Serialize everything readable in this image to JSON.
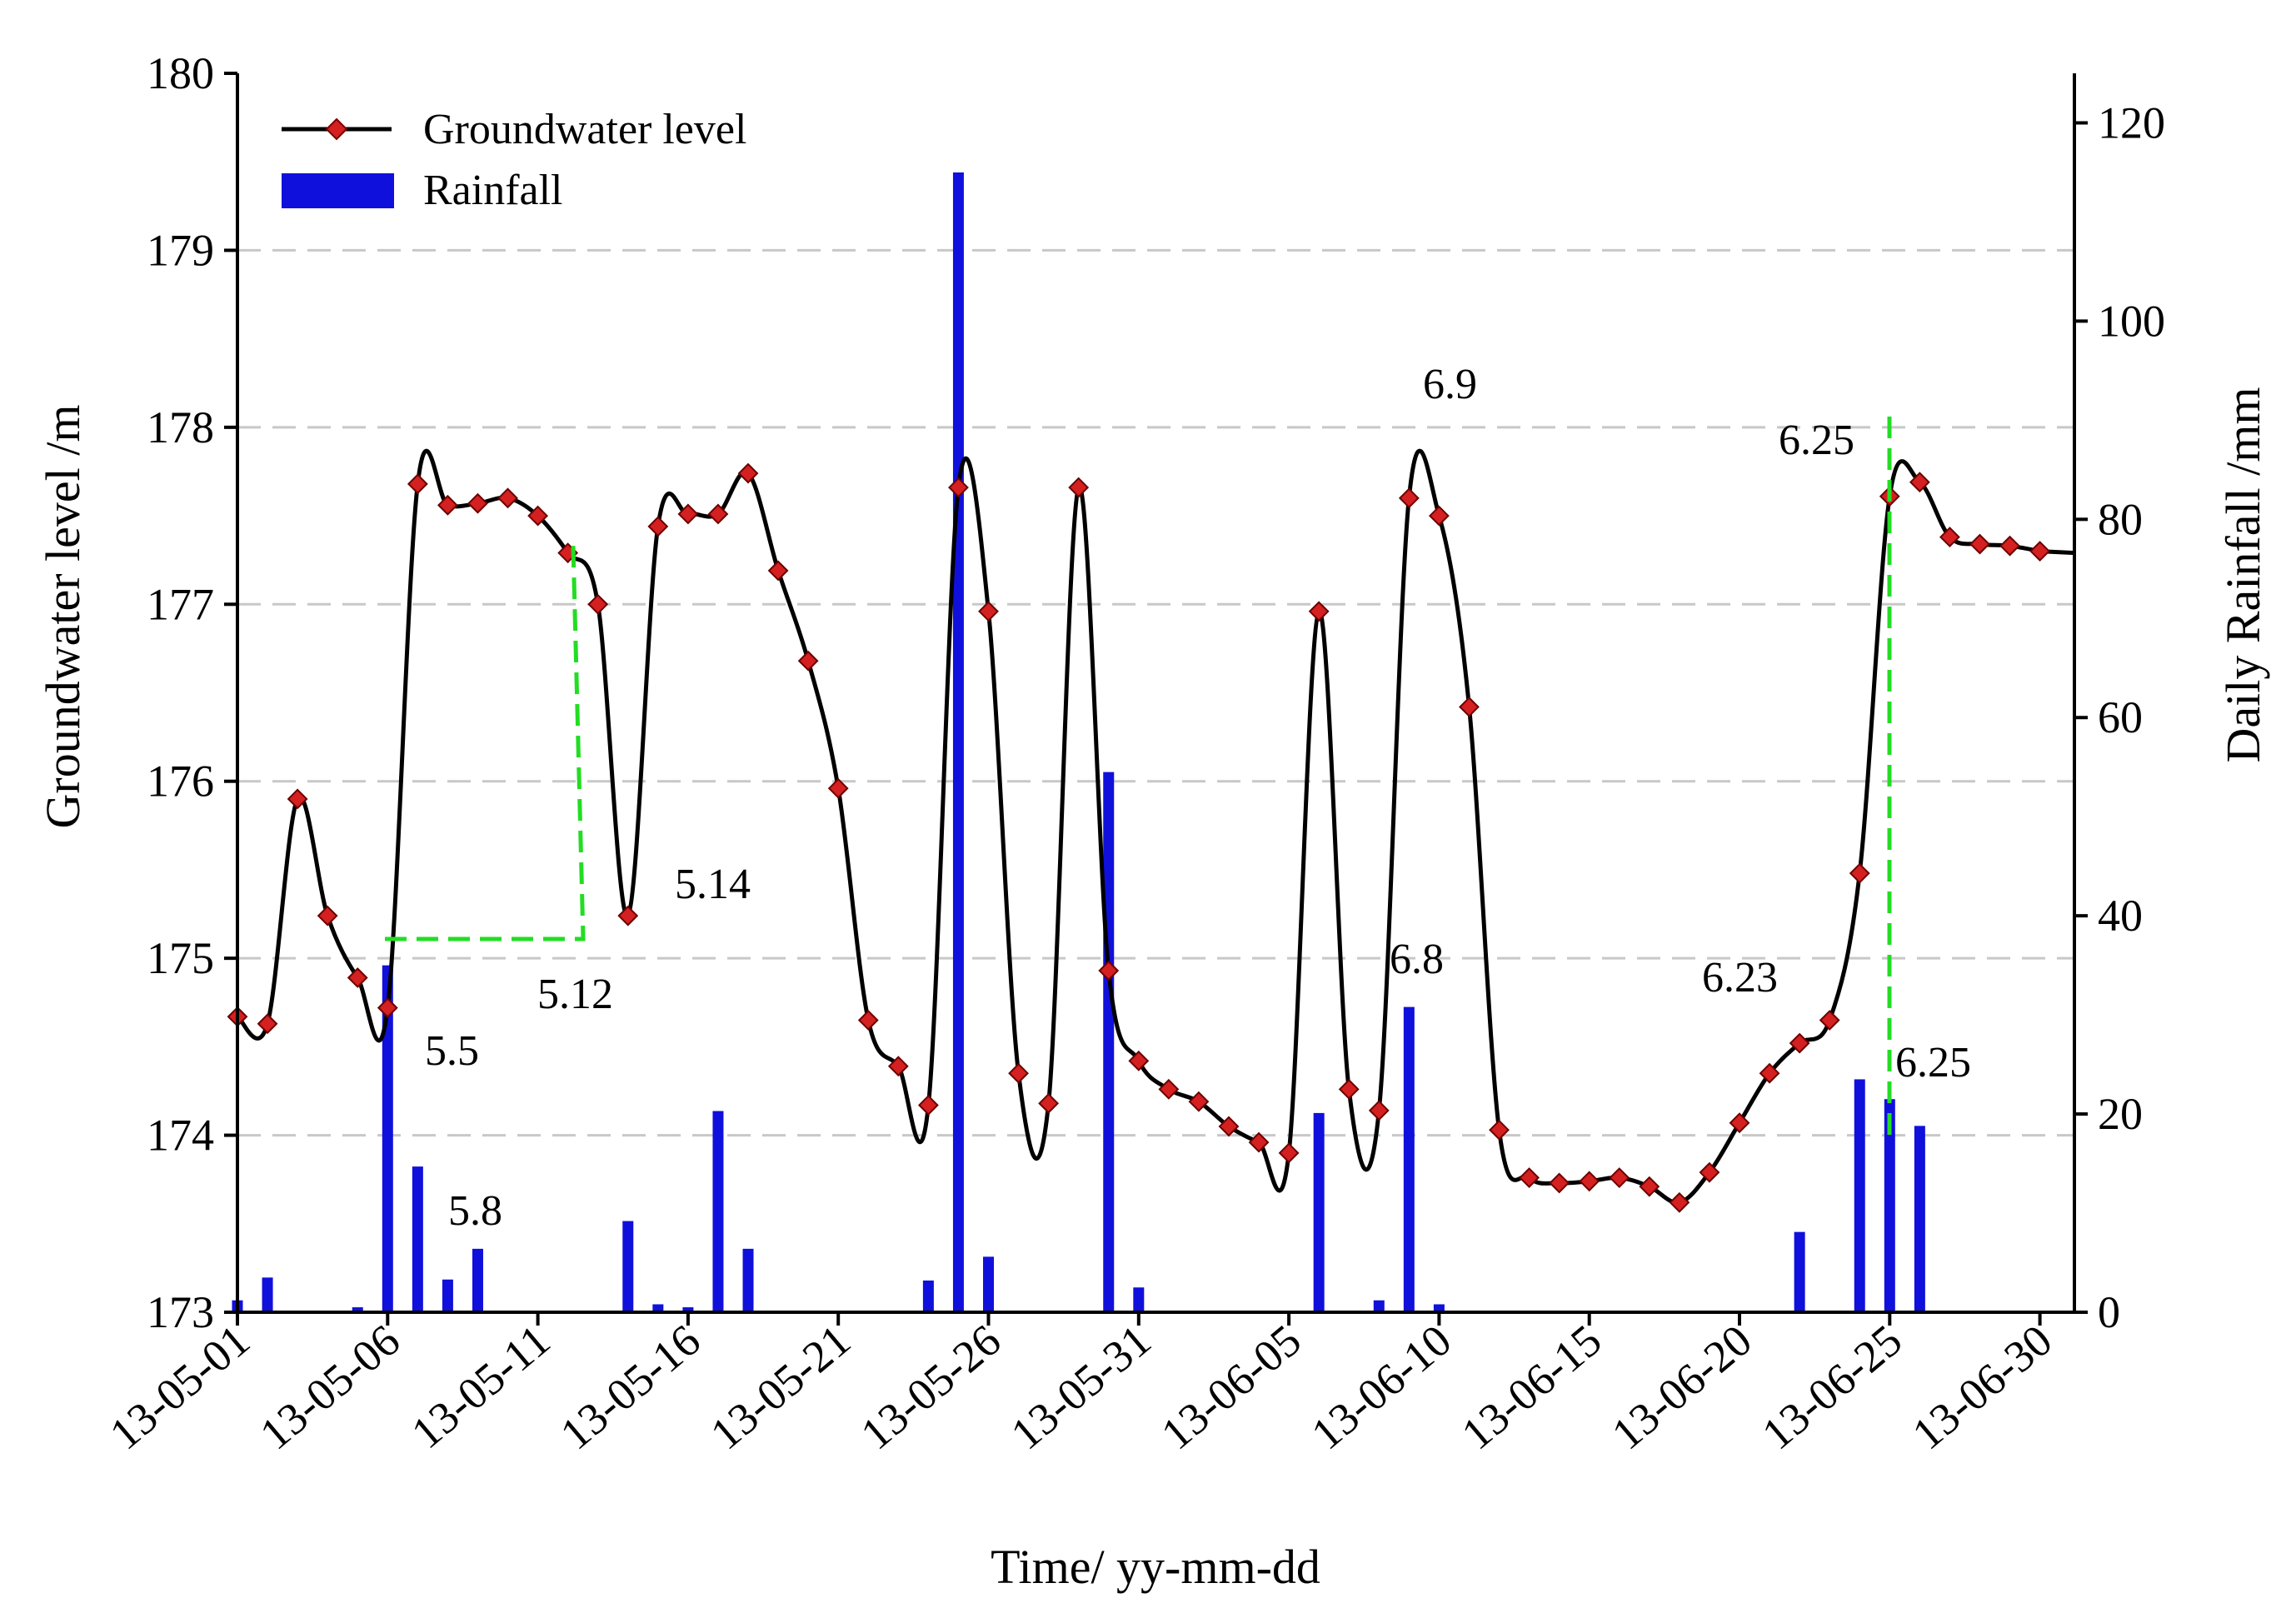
{
  "chart_data": {
    "type": "line+bar",
    "title": "",
    "xlabel": "Time/ yy-mm-dd",
    "ylabel_left": "Groundwater level /m",
    "ylabel_right": "Daily Rainfall /mm",
    "x_range_days": [
      0,
      60.5
    ],
    "ylim_left": [
      173,
      180
    ],
    "ylim_right": [
      0,
      125
    ],
    "yticks_left": [
      "173",
      "174",
      "175",
      "176",
      "177",
      "178",
      "179",
      "180"
    ],
    "yticks_right": [
      "0",
      "20",
      "40",
      "60",
      "80",
      "100",
      "120"
    ],
    "xtick_days": [
      0,
      5,
      10,
      15,
      20,
      25,
      30,
      35,
      40,
      45,
      50,
      55,
      60
    ],
    "xtick_labels": [
      "13-05-01",
      "13-05-06",
      "13-05-11",
      "13-05-16",
      "13-05-21",
      "13-05-26",
      "13-05-31",
      "13-06-05",
      "13-06-10",
      "13-06-15",
      "13-06-20",
      "13-06-25",
      "13-06-30"
    ],
    "grid": true,
    "legend_position": "top-left",
    "legend": [
      {
        "label": "Groundwater level",
        "kind": "line-marker"
      },
      {
        "label": "Rainfall",
        "kind": "bar"
      }
    ],
    "colors": {
      "line": "#000000",
      "marker": "#d42020",
      "bar": "#1010dc",
      "annot_line": "#22dd22"
    },
    "series_groundwater": {
      "name": "Groundwater level",
      "day": [
        0,
        1,
        2,
        3,
        4,
        5,
        6,
        7,
        8,
        9,
        10,
        11,
        12,
        13,
        14,
        15,
        16,
        17,
        18,
        19,
        20,
        21,
        22,
        23,
        24,
        25,
        26,
        27,
        28,
        29,
        30,
        31,
        32,
        33,
        34,
        35,
        36,
        37,
        38,
        39,
        40,
        41,
        42,
        43,
        44,
        45,
        46,
        47,
        48,
        49,
        50,
        51,
        52,
        53,
        54,
        55,
        56,
        57,
        58,
        59,
        60
      ],
      "level": [
        174.67,
        174.63,
        175.9,
        175.24,
        174.89,
        174.72,
        177.68,
        177.56,
        177.57,
        177.6,
        177.5,
        177.29,
        177.0,
        175.24,
        177.44,
        177.51,
        177.51,
        177.74,
        177.19,
        176.68,
        175.96,
        174.65,
        174.39,
        174.17,
        177.66,
        176.96,
        174.35,
        174.18,
        177.66,
        174.93,
        174.42,
        174.26,
        174.19,
        174.05,
        173.96,
        173.9,
        176.96,
        174.26,
        174.14,
        177.6,
        177.5,
        176.42,
        174.03,
        173.76,
        173.73,
        173.74,
        173.76,
        173.71,
        173.62,
        173.79,
        174.07,
        174.35,
        174.52,
        174.65,
        175.48,
        177.61,
        177.69,
        177.38,
        177.34,
        177.33,
        177.3
      ]
    },
    "series_rainfall": {
      "name": "Rainfall",
      "unit": "mm",
      "day": [
        0,
        1,
        4,
        5,
        6,
        7,
        8,
        13,
        14,
        15,
        16,
        17,
        23,
        24,
        25,
        29,
        30,
        36,
        38,
        39,
        40,
        52,
        54,
        55,
        56
      ],
      "mm": [
        1.2,
        3.5,
        0.5,
        35.0,
        14.7,
        3.3,
        6.4,
        9.2,
        0.8,
        0.5,
        20.3,
        6.4,
        3.2,
        115.0,
        5.6,
        54.5,
        2.5,
        20.1,
        1.2,
        30.8,
        0.8,
        8.1,
        23.5,
        21.5,
        18.8
      ]
    },
    "annotations": [
      "5.5",
      "5.8",
      "5.12",
      "5.14",
      "6.8",
      "6.9",
      "6.23",
      "6.25",
      "6.25"
    ]
  }
}
